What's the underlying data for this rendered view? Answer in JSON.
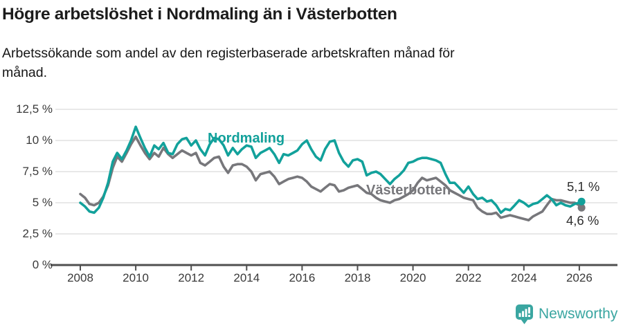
{
  "title": "Högre arbetslöshet i Nordmaling än i Västerbotten",
  "subtitle": "Arbetssökande som andel av den registerbaserade arbetskraften månad för månad.",
  "branding": {
    "logo_text": "Newsworthy",
    "logo_icon": "newsworthy-pin-chart-icon"
  },
  "colors": {
    "nordmaling": "#12a19b",
    "vasterbotten": "#77777b",
    "brand_teal": "#3aa6a1",
    "grid": "#d9d9d9",
    "axis": "#4f4f4f",
    "axis_text": "#3a3a3a"
  },
  "chart_data": {
    "type": "line",
    "title": "Högre arbetslöshet i Nordmaling än i Västerbotten",
    "xlabel": "",
    "ylabel": "Arbetssökande som andel av den registerbaserade arbetskraften (%)",
    "x_unit": "år (månadsdata)",
    "ylim": [
      0,
      12.5
    ],
    "xlim": [
      2008,
      2026.2
    ],
    "grid": "horizontal",
    "legend_position": "inline-labels",
    "y_ticks": [
      {
        "value": 0,
        "label": "0 %"
      },
      {
        "value": 2.5,
        "label": "2,5 %"
      },
      {
        "value": 5,
        "label": "5 %"
      },
      {
        "value": 7.5,
        "label": "7,5 %"
      },
      {
        "value": 10,
        "label": "10 %"
      },
      {
        "value": 12.5,
        "label": "12,5 %"
      }
    ],
    "x_ticks": [
      {
        "value": 2008,
        "label": "2008"
      },
      {
        "value": 2010,
        "label": "2010"
      },
      {
        "value": 2012,
        "label": "2012"
      },
      {
        "value": 2014,
        "label": "2014"
      },
      {
        "value": 2016,
        "label": "2016"
      },
      {
        "value": 2018,
        "label": "2018"
      },
      {
        "value": 2020,
        "label": "2020"
      },
      {
        "value": 2022,
        "label": "2022"
      },
      {
        "value": 2024,
        "label": "2024"
      },
      {
        "value": 2026,
        "label": "2026"
      }
    ],
    "series": [
      {
        "name": "Nordmaling",
        "color": "#12a19b",
        "end_label": "5,1 %",
        "end_value": 5.1,
        "points": [
          [
            2008,
            5
          ],
          [
            2008.17,
            4.7
          ],
          [
            2008.33,
            4.3
          ],
          [
            2008.5,
            4.2
          ],
          [
            2008.67,
            4.6
          ],
          [
            2008.83,
            5.4
          ],
          [
            2009,
            6.6
          ],
          [
            2009.17,
            8.3
          ],
          [
            2009.33,
            9
          ],
          [
            2009.5,
            8.5
          ],
          [
            2009.67,
            9.2
          ],
          [
            2009.83,
            10
          ],
          [
            2010,
            11.1
          ],
          [
            2010.17,
            10.2
          ],
          [
            2010.33,
            9.4
          ],
          [
            2010.5,
            8.7
          ],
          [
            2010.67,
            9.6
          ],
          [
            2010.83,
            9.3
          ],
          [
            2011,
            9.8
          ],
          [
            2011.17,
            9
          ],
          [
            2011.33,
            8.9
          ],
          [
            2011.5,
            9.7
          ],
          [
            2011.67,
            10.1
          ],
          [
            2011.83,
            10.2
          ],
          [
            2012,
            9.6
          ],
          [
            2012.17,
            10
          ],
          [
            2012.33,
            9.3
          ],
          [
            2012.5,
            8.8
          ],
          [
            2012.67,
            9.7
          ],
          [
            2012.83,
            10.2
          ],
          [
            2013,
            10.1
          ],
          [
            2013.17,
            9.6
          ],
          [
            2013.33,
            8.8
          ],
          [
            2013.5,
            9.4
          ],
          [
            2013.67,
            8.9
          ],
          [
            2013.83,
            9.3
          ],
          [
            2014,
            9.6
          ],
          [
            2014.17,
            9.5
          ],
          [
            2014.33,
            8.6
          ],
          [
            2014.5,
            9
          ],
          [
            2014.67,
            9.2
          ],
          [
            2014.83,
            9.4
          ],
          [
            2015,
            8.9
          ],
          [
            2015.17,
            8.2
          ],
          [
            2015.33,
            8.9
          ],
          [
            2015.5,
            8.8
          ],
          [
            2015.67,
            9
          ],
          [
            2015.83,
            9.2
          ],
          [
            2016,
            9.7
          ],
          [
            2016.17,
            10
          ],
          [
            2016.33,
            9.3
          ],
          [
            2016.5,
            8.7
          ],
          [
            2016.67,
            8.4
          ],
          [
            2016.83,
            9.3
          ],
          [
            2017,
            9.9
          ],
          [
            2017.17,
            10
          ],
          [
            2017.33,
            9
          ],
          [
            2017.5,
            8.3
          ],
          [
            2017.67,
            7.9
          ],
          [
            2017.83,
            8.4
          ],
          [
            2018,
            8.5
          ],
          [
            2018.17,
            8.3
          ],
          [
            2018.33,
            7.2
          ],
          [
            2018.5,
            7.4
          ],
          [
            2018.67,
            7.5
          ],
          [
            2018.83,
            7.3
          ],
          [
            2019,
            6.9
          ],
          [
            2019.17,
            6.5
          ],
          [
            2019.33,
            6.9
          ],
          [
            2019.5,
            7.2
          ],
          [
            2019.67,
            7.6
          ],
          [
            2019.83,
            8.2
          ],
          [
            2020,
            8.3
          ],
          [
            2020.17,
            8.5
          ],
          [
            2020.33,
            8.6
          ],
          [
            2020.5,
            8.6
          ],
          [
            2020.67,
            8.5
          ],
          [
            2020.83,
            8.4
          ],
          [
            2021,
            8.2
          ],
          [
            2021.17,
            7.3
          ],
          [
            2021.33,
            6.6
          ],
          [
            2021.5,
            6.6
          ],
          [
            2021.67,
            6.2
          ],
          [
            2021.83,
            5.8
          ],
          [
            2022,
            6.3
          ],
          [
            2022.17,
            5.7
          ],
          [
            2022.33,
            5.3
          ],
          [
            2022.5,
            5.4
          ],
          [
            2022.67,
            5.1
          ],
          [
            2022.83,
            5.2
          ],
          [
            2023,
            4.8
          ],
          [
            2023.17,
            4.2
          ],
          [
            2023.33,
            4.5
          ],
          [
            2023.5,
            4.4
          ],
          [
            2023.67,
            4.8
          ],
          [
            2023.83,
            5.2
          ],
          [
            2024,
            5
          ],
          [
            2024.17,
            4.7
          ],
          [
            2024.33,
            4.9
          ],
          [
            2024.5,
            5
          ],
          [
            2024.67,
            5.3
          ],
          [
            2024.83,
            5.6
          ],
          [
            2025,
            5.3
          ],
          [
            2025.17,
            4.8
          ],
          [
            2025.33,
            5
          ],
          [
            2025.5,
            4.8
          ],
          [
            2025.67,
            4.7
          ],
          [
            2025.83,
            4.9
          ],
          [
            2026,
            5
          ],
          [
            2026.08,
            5.1
          ]
        ]
      },
      {
        "name": "Västerbotten",
        "color": "#77777b",
        "end_label": "4,6 %",
        "end_value": 4.6,
        "points": [
          [
            2008,
            5.7
          ],
          [
            2008.17,
            5.4
          ],
          [
            2008.33,
            4.9
          ],
          [
            2008.5,
            4.8
          ],
          [
            2008.67,
            5
          ],
          [
            2008.83,
            5.5
          ],
          [
            2009,
            6.4
          ],
          [
            2009.17,
            7.8
          ],
          [
            2009.33,
            8.7
          ],
          [
            2009.5,
            8.3
          ],
          [
            2009.67,
            9
          ],
          [
            2009.83,
            9.7
          ],
          [
            2010,
            10.3
          ],
          [
            2010.17,
            9.6
          ],
          [
            2010.33,
            9
          ],
          [
            2010.5,
            8.5
          ],
          [
            2010.67,
            9
          ],
          [
            2010.83,
            8.7
          ],
          [
            2011,
            9.4
          ],
          [
            2011.17,
            8.9
          ],
          [
            2011.33,
            8.6
          ],
          [
            2011.5,
            8.9
          ],
          [
            2011.67,
            9.2
          ],
          [
            2011.83,
            9
          ],
          [
            2012,
            8.8
          ],
          [
            2012.17,
            9
          ],
          [
            2012.33,
            8.2
          ],
          [
            2012.5,
            8
          ],
          [
            2012.67,
            8.3
          ],
          [
            2012.83,
            8.6
          ],
          [
            2013,
            8.7
          ],
          [
            2013.17,
            7.9
          ],
          [
            2013.33,
            7.4
          ],
          [
            2013.5,
            8
          ],
          [
            2013.67,
            8.1
          ],
          [
            2013.83,
            8.1
          ],
          [
            2014,
            7.9
          ],
          [
            2014.17,
            7.5
          ],
          [
            2014.33,
            6.8
          ],
          [
            2014.5,
            7.3
          ],
          [
            2014.67,
            7.4
          ],
          [
            2014.83,
            7.5
          ],
          [
            2015,
            7.1
          ],
          [
            2015.17,
            6.5
          ],
          [
            2015.33,
            6.7
          ],
          [
            2015.5,
            6.9
          ],
          [
            2015.67,
            7
          ],
          [
            2015.83,
            7.1
          ],
          [
            2016,
            7
          ],
          [
            2016.17,
            6.7
          ],
          [
            2016.33,
            6.3
          ],
          [
            2016.5,
            6.1
          ],
          [
            2016.67,
            5.9
          ],
          [
            2016.83,
            6.2
          ],
          [
            2017,
            6.5
          ],
          [
            2017.17,
            6.4
          ],
          [
            2017.33,
            5.9
          ],
          [
            2017.5,
            6
          ],
          [
            2017.67,
            6.2
          ],
          [
            2017.83,
            6.3
          ],
          [
            2018,
            6.4
          ],
          [
            2018.17,
            6.1
          ],
          [
            2018.33,
            5.8
          ],
          [
            2018.5,
            5.7
          ],
          [
            2018.67,
            5.4
          ],
          [
            2018.83,
            5.2
          ],
          [
            2019,
            5.1
          ],
          [
            2019.17,
            5
          ],
          [
            2019.33,
            5.2
          ],
          [
            2019.5,
            5.3
          ],
          [
            2019.67,
            5.5
          ],
          [
            2019.83,
            5.7
          ],
          [
            2020,
            6
          ],
          [
            2020.17,
            6.6
          ],
          [
            2020.33,
            7
          ],
          [
            2020.5,
            6.8
          ],
          [
            2020.67,
            6.9
          ],
          [
            2020.83,
            7
          ],
          [
            2021,
            6.7
          ],
          [
            2021.17,
            6.4
          ],
          [
            2021.33,
            6
          ],
          [
            2021.5,
            5.8
          ],
          [
            2021.67,
            5.6
          ],
          [
            2021.83,
            5.4
          ],
          [
            2022,
            5.3
          ],
          [
            2022.17,
            5.2
          ],
          [
            2022.33,
            4.6
          ],
          [
            2022.5,
            4.3
          ],
          [
            2022.67,
            4.1
          ],
          [
            2022.83,
            4.1
          ],
          [
            2023,
            4.2
          ],
          [
            2023.17,
            3.8
          ],
          [
            2023.33,
            3.9
          ],
          [
            2023.5,
            4
          ],
          [
            2023.67,
            3.9
          ],
          [
            2023.83,
            3.8
          ],
          [
            2024,
            3.7
          ],
          [
            2024.17,
            3.6
          ],
          [
            2024.33,
            3.9
          ],
          [
            2024.5,
            4.1
          ],
          [
            2024.67,
            4.3
          ],
          [
            2024.83,
            4.8
          ],
          [
            2025,
            5.3
          ],
          [
            2025.17,
            5.2
          ],
          [
            2025.33,
            5.2
          ],
          [
            2025.5,
            5.1
          ],
          [
            2025.67,
            5
          ],
          [
            2025.83,
            5
          ],
          [
            2026,
            4.8
          ],
          [
            2026.08,
            4.6
          ]
        ]
      }
    ]
  }
}
